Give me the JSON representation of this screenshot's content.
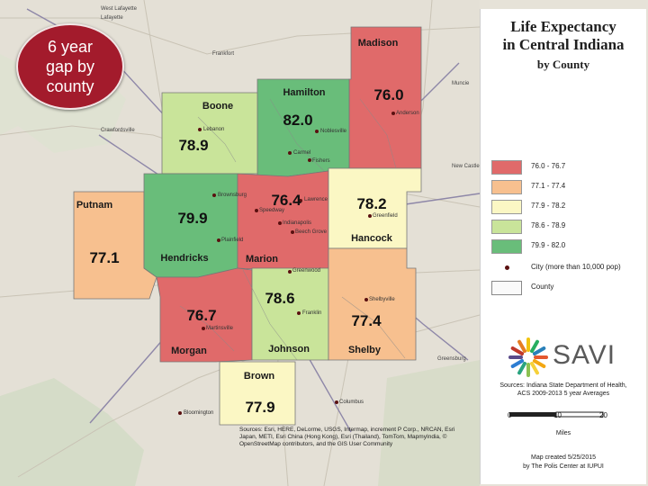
{
  "badge": {
    "lines": [
      "6 year",
      "gap by",
      "county"
    ]
  },
  "title": {
    "line1": "Life Expectancy",
    "line2": "in Central Indiana",
    "line3": "by County"
  },
  "legend": {
    "items": [
      {
        "label": "76.0 - 76.7",
        "color": "#e06a6a"
      },
      {
        "label": "77.1 - 77.4",
        "color": "#f7c08f"
      },
      {
        "label": "77.9 - 78.2",
        "color": "#fbf7c4"
      },
      {
        "label": "78.6 - 78.9",
        "color": "#c9e49a"
      },
      {
        "label": "79.9 - 82.0",
        "color": "#69bd7a"
      }
    ],
    "city": "City (more than 10,000 pop)",
    "county": "County"
  },
  "logo": {
    "text": "SAVI"
  },
  "source": {
    "line1": "Sources: Indiana State Department of Health,",
    "line2": "ACS 2009-2013 5 year Averages"
  },
  "scale": {
    "ticks": [
      "0",
      "10",
      "20"
    ],
    "unit": "Miles"
  },
  "credit": {
    "line1": "Map created 5/25/2015",
    "line2": "by The Polis Center at IUPUI"
  },
  "attribution": "Sources: Esri, HERE, DeLorme, USGS, Intermap, increment P Corp., NRCAN, Esri Japan, METI, Esri China (Hong Kong), Esri (Thailand), TomTom, MapmyIndia, © OpenStreetMap contributors, and the GIS User Community",
  "counties": {
    "madison": {
      "name": "Madison",
      "value": "76.0",
      "color": "#e06a6a"
    },
    "hamilton": {
      "name": "Hamilton",
      "value": "82.0",
      "color": "#69bd7a"
    },
    "boone": {
      "name": "Boone",
      "value": "78.9",
      "color": "#c9e49a"
    },
    "putnam": {
      "name": "Putnam",
      "value": "77.1",
      "color": "#f7c08f"
    },
    "hendricks": {
      "name": "Hendricks",
      "value": "79.9",
      "color": "#69bd7a"
    },
    "marion": {
      "name": "Marion",
      "value": "76.4",
      "color": "#e06a6a"
    },
    "hancock": {
      "name": "Hancock",
      "value": "78.2",
      "color": "#fbf7c4"
    },
    "morgan": {
      "name": "Morgan",
      "value": "76.7",
      "color": "#e06a6a"
    },
    "johnson": {
      "name": "Johnson",
      "value": "78.6",
      "color": "#c9e49a"
    },
    "shelby": {
      "name": "Shelby",
      "value": "77.4",
      "color": "#f7c08f"
    },
    "brown": {
      "name": "Brown",
      "value": "77.9",
      "color": "#fbf7c4"
    }
  },
  "cities": {
    "anderson": "Anderson",
    "noblesville": "Noblesville",
    "lebanon": "Lebanon",
    "carmel": "Carmel",
    "fishers": "Fishers",
    "brownsburg": "Brownsburg",
    "speedway": "Speedway",
    "lawrence": "Lawrence",
    "greenfield": "Greenfield",
    "indianapolis": "Indianapolis",
    "beech_grove": "Beech Grove",
    "plainfield": "Plainfield",
    "greenwood": "Greenwood",
    "shelbyville": "Shelbyville",
    "franklin": "Franklin",
    "martinsville": "Martinsville",
    "bloomington": "Bloomington",
    "columbus": "Columbus"
  },
  "background_places": {
    "west_lafayette": "West Lafayette",
    "lafayette": "Lafayette",
    "frankfort": "Frankfort",
    "crawfordsville": "Crawfordsville",
    "muncie": "Muncie",
    "new_castle": "New Castle",
    "greensburg": "Greensburg"
  }
}
